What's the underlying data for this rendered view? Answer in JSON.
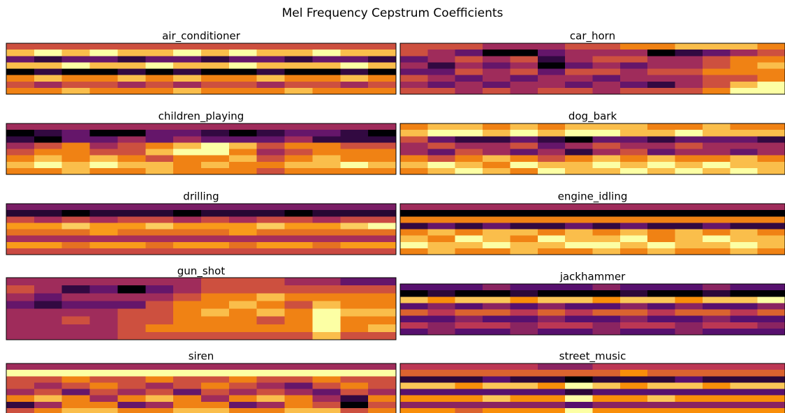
{
  "title": "Mel Frequency Cepstrum Coefficients",
  "chart_data": [
    {
      "type": "heatmap",
      "title": "air_conditioner",
      "colormap": "inferno",
      "values": [
        [
          5,
          5,
          5,
          5,
          5,
          5,
          5,
          5,
          5,
          5,
          5,
          5,
          5,
          5
        ],
        [
          7,
          8,
          7,
          8,
          7,
          7,
          8,
          7,
          8,
          7,
          7,
          8,
          7,
          7
        ],
        [
          3,
          2,
          3,
          3,
          2,
          3,
          3,
          2,
          3,
          3,
          2,
          3,
          3,
          2
        ],
        [
          7,
          7,
          8,
          7,
          7,
          8,
          7,
          7,
          8,
          7,
          7,
          7,
          8,
          7
        ],
        [
          1,
          2,
          1,
          1,
          2,
          1,
          2,
          1,
          1,
          2,
          1,
          1,
          2,
          1
        ],
        [
          6,
          7,
          6,
          6,
          7,
          6,
          7,
          6,
          6,
          7,
          6,
          6,
          7,
          6
        ],
        [
          5,
          4,
          5,
          5,
          4,
          5,
          4,
          5,
          5,
          4,
          5,
          5,
          4,
          5
        ],
        [
          6,
          6,
          7,
          6,
          6,
          6,
          7,
          6,
          6,
          6,
          7,
          6,
          6,
          6
        ]
      ]
    },
    {
      "type": "heatmap",
      "title": "car_horn",
      "colormap": "inferno",
      "values": [
        [
          5,
          5,
          5,
          4,
          4,
          4,
          5,
          5,
          6,
          6,
          7,
          7,
          7,
          6
        ],
        [
          5,
          4,
          3,
          1,
          1,
          3,
          4,
          4,
          4,
          1,
          2,
          3,
          4,
          5
        ],
        [
          3,
          4,
          5,
          4,
          5,
          2,
          4,
          5,
          5,
          4,
          4,
          5,
          6,
          6
        ],
        [
          4,
          2,
          4,
          3,
          4,
          1,
          3,
          4,
          3,
          4,
          4,
          5,
          6,
          7
        ],
        [
          3,
          3,
          5,
          4,
          5,
          3,
          5,
          5,
          4,
          5,
          5,
          6,
          6,
          6
        ],
        [
          5,
          4,
          3,
          4,
          3,
          4,
          4,
          3,
          4,
          4,
          4,
          5,
          5,
          6
        ],
        [
          4,
          3,
          4,
          3,
          4,
          4,
          3,
          4,
          3,
          2,
          4,
          5,
          7,
          8
        ],
        [
          5,
          5,
          4,
          5,
          4,
          5,
          5,
          4,
          5,
          5,
          5,
          6,
          8,
          8
        ]
      ]
    },
    {
      "type": "heatmap",
      "title": "children_playing",
      "colormap": "inferno",
      "values": [
        [
          4,
          4,
          4,
          4,
          4,
          4,
          4,
          4,
          4,
          4,
          4,
          4,
          4,
          4
        ],
        [
          1,
          2,
          3,
          1,
          1,
          3,
          3,
          2,
          1,
          2,
          3,
          3,
          2,
          1
        ],
        [
          2,
          1,
          3,
          3,
          4,
          3,
          4,
          3,
          3,
          3,
          4,
          2,
          2,
          2
        ],
        [
          4,
          5,
          6,
          4,
          5,
          6,
          7,
          8,
          7,
          5,
          6,
          6,
          5,
          5
        ],
        [
          5,
          6,
          6,
          5,
          5,
          7,
          8,
          8,
          6,
          4,
          5,
          6,
          6,
          6
        ],
        [
          6,
          7,
          6,
          7,
          6,
          5,
          6,
          6,
          7,
          5,
          6,
          7,
          6,
          6
        ],
        [
          7,
          8,
          7,
          8,
          7,
          7,
          6,
          7,
          6,
          6,
          7,
          7,
          8,
          7
        ],
        [
          6,
          6,
          7,
          6,
          6,
          7,
          6,
          6,
          6,
          5,
          6,
          6,
          6,
          6
        ]
      ]
    },
    {
      "type": "heatmap",
      "title": "dog_bark",
      "colormap": "inferno",
      "values": [
        [
          6,
          7,
          7,
          6,
          7,
          6,
          7,
          7,
          7,
          6,
          6,
          7,
          6,
          6
        ],
        [
          7,
          8,
          8,
          7,
          8,
          7,
          8,
          8,
          7,
          7,
          8,
          7,
          7,
          7
        ],
        [
          5,
          3,
          2,
          2,
          3,
          2,
          1,
          3,
          3,
          2,
          3,
          3,
          3,
          2
        ],
        [
          4,
          5,
          4,
          4,
          5,
          3,
          4,
          5,
          4,
          4,
          5,
          4,
          4,
          4
        ],
        [
          4,
          3,
          5,
          4,
          3,
          4,
          2,
          4,
          5,
          3,
          4,
          4,
          3,
          4
        ],
        [
          6,
          5,
          6,
          7,
          6,
          5,
          6,
          7,
          6,
          7,
          6,
          6,
          7,
          6
        ],
        [
          7,
          8,
          7,
          6,
          8,
          7,
          7,
          8,
          7,
          8,
          7,
          8,
          7,
          7
        ],
        [
          6,
          7,
          8,
          7,
          6,
          8,
          7,
          7,
          8,
          7,
          8,
          7,
          8,
          7
        ]
      ]
    },
    {
      "type": "heatmap",
      "title": "drilling",
      "colormap": "inferno",
      "values": [
        [
          3,
          3,
          3,
          3,
          3,
          3,
          3,
          3,
          3,
          3,
          3,
          3,
          3,
          3
        ],
        [
          1,
          1,
          0,
          1,
          1,
          1,
          0,
          1,
          1,
          1,
          0,
          1,
          1,
          1
        ],
        [
          5,
          4,
          5,
          4,
          5,
          5,
          4,
          5,
          4,
          5,
          5,
          4,
          5,
          5
        ],
        [
          7,
          7,
          8,
          7,
          7,
          8,
          7,
          7,
          7,
          8,
          7,
          7,
          8,
          9
        ],
        [
          6,
          6,
          6,
          7,
          6,
          6,
          6,
          6,
          7,
          6,
          6,
          6,
          6,
          6
        ],
        [
          4,
          4,
          4,
          4,
          4,
          4,
          4,
          4,
          4,
          4,
          4,
          4,
          4,
          4
        ],
        [
          7,
          7,
          6,
          7,
          7,
          6,
          7,
          7,
          6,
          7,
          7,
          6,
          7,
          7
        ],
        [
          5,
          5,
          5,
          5,
          5,
          5,
          5,
          5,
          5,
          5,
          5,
          5,
          5,
          5
        ]
      ]
    },
    {
      "type": "heatmap",
      "title": "engine_idling",
      "colormap": "inferno",
      "values": [
        [
          4,
          4,
          4,
          4,
          4,
          4,
          4,
          4,
          4,
          4,
          4,
          4,
          4,
          4
        ],
        [
          1,
          1,
          1,
          1,
          1,
          1,
          1,
          1,
          1,
          1,
          1,
          1,
          1,
          1
        ],
        [
          6,
          6,
          6,
          6,
          6,
          6,
          6,
          6,
          6,
          6,
          6,
          6,
          6,
          6
        ],
        [
          2,
          3,
          2,
          3,
          2,
          2,
          3,
          2,
          3,
          2,
          2,
          3,
          2,
          2
        ],
        [
          6,
          7,
          6,
          7,
          7,
          6,
          7,
          6,
          7,
          6,
          7,
          6,
          7,
          6
        ],
        [
          7,
          6,
          8,
          7,
          6,
          8,
          7,
          7,
          8,
          6,
          7,
          8,
          7,
          7
        ],
        [
          8,
          7,
          7,
          8,
          7,
          7,
          8,
          8,
          7,
          8,
          7,
          7,
          8,
          7
        ],
        [
          6,
          7,
          6,
          6,
          7,
          6,
          6,
          7,
          6,
          7,
          6,
          6,
          7,
          6
        ]
      ]
    },
    {
      "type": "heatmap",
      "title": "gun_shot",
      "colormap": "inferno",
      "values": [
        [
          4,
          4,
          4,
          4,
          4,
          4,
          4,
          5,
          5,
          5,
          4,
          4,
          3,
          3
        ],
        [
          5,
          4,
          2,
          3,
          1,
          3,
          4,
          5,
          5,
          5,
          5,
          5,
          5,
          5
        ],
        [
          4,
          3,
          4,
          4,
          4,
          4,
          5,
          6,
          6,
          7,
          6,
          6,
          6,
          6
        ],
        [
          3,
          2,
          3,
          3,
          3,
          5,
          6,
          6,
          7,
          6,
          5,
          7,
          6,
          6
        ],
        [
          4,
          4,
          4,
          4,
          5,
          5,
          6,
          7,
          6,
          7,
          6,
          8,
          7,
          7
        ],
        [
          4,
          4,
          5,
          4,
          5,
          5,
          6,
          6,
          6,
          5,
          6,
          8,
          6,
          6
        ],
        [
          4,
          4,
          4,
          4,
          5,
          6,
          6,
          6,
          6,
          6,
          6,
          8,
          6,
          7
        ],
        [
          4,
          4,
          4,
          4,
          5,
          5,
          5,
          5,
          5,
          5,
          5,
          7,
          5,
          5
        ]
      ]
    },
    {
      "type": "heatmap",
      "title": "jackhammer",
      "colormap": "inferno",
      "values": [
        [
          3,
          3,
          3,
          4,
          3,
          3,
          3,
          4,
          3,
          3,
          3,
          4,
          3,
          3
        ],
        [
          1,
          2,
          1,
          1,
          2,
          1,
          1,
          1,
          2,
          1,
          1,
          2,
          1,
          1
        ],
        [
          8,
          7,
          8,
          8,
          7,
          8,
          8,
          7,
          8,
          8,
          7,
          8,
          8,
          9
        ],
        [
          3,
          4,
          3,
          4,
          3,
          4,
          3,
          3,
          4,
          3,
          4,
          3,
          3,
          4
        ],
        [
          6,
          5,
          6,
          6,
          5,
          6,
          5,
          6,
          6,
          5,
          6,
          6,
          5,
          6
        ],
        [
          3,
          3,
          4,
          3,
          3,
          4,
          3,
          3,
          4,
          3,
          3,
          4,
          3,
          3
        ],
        [
          5,
          4,
          5,
          5,
          4,
          5,
          5,
          4,
          5,
          5,
          4,
          5,
          5,
          4
        ],
        [
          3,
          4,
          3,
          3,
          4,
          3,
          3,
          4,
          3,
          3,
          4,
          3,
          3,
          3
        ]
      ]
    },
    {
      "type": "heatmap",
      "title": "siren",
      "colormap": "inferno",
      "values": [
        [
          4,
          4,
          4,
          4,
          4,
          4,
          4,
          4,
          4,
          4,
          4,
          4,
          4,
          4
        ],
        [
          8,
          8,
          8,
          8,
          8,
          8,
          8,
          8,
          8,
          8,
          8,
          8,
          8,
          8
        ],
        [
          5,
          5,
          6,
          5,
          5,
          6,
          5,
          5,
          6,
          5,
          5,
          6,
          5,
          5
        ],
        [
          5,
          4,
          5,
          6,
          5,
          4,
          5,
          6,
          5,
          4,
          3,
          5,
          6,
          5
        ],
        [
          4,
          5,
          3,
          5,
          4,
          5,
          3,
          5,
          4,
          5,
          4,
          3,
          5,
          4
        ],
        [
          6,
          7,
          6,
          4,
          6,
          7,
          6,
          4,
          6,
          7,
          6,
          4,
          2,
          6
        ],
        [
          2,
          4,
          6,
          6,
          3,
          4,
          6,
          6,
          3,
          4,
          6,
          5,
          1,
          5
        ],
        [
          5,
          6,
          7,
          7,
          6,
          6,
          7,
          7,
          6,
          6,
          7,
          7,
          5,
          6
        ]
      ]
    },
    {
      "type": "heatmap",
      "title": "street_music",
      "colormap": "inferno",
      "values": [
        [
          4,
          4,
          4,
          4,
          4,
          3,
          3,
          4,
          4,
          4,
          4,
          4,
          4,
          4
        ],
        [
          5,
          5,
          5,
          5,
          5,
          5,
          5,
          5,
          6,
          5,
          5,
          5,
          5,
          5
        ],
        [
          1,
          1,
          1,
          2,
          1,
          1,
          0,
          1,
          1,
          1,
          2,
          1,
          1,
          1
        ],
        [
          7,
          7,
          6,
          7,
          7,
          6,
          8,
          7,
          6,
          7,
          7,
          6,
          7,
          7
        ],
        [
          2,
          2,
          2,
          2,
          2,
          2,
          1,
          2,
          2,
          2,
          2,
          2,
          2,
          2
        ],
        [
          6,
          6,
          6,
          7,
          6,
          6,
          8,
          6,
          6,
          7,
          6,
          6,
          6,
          6
        ],
        [
          3,
          3,
          3,
          3,
          3,
          3,
          2,
          3,
          3,
          3,
          3,
          3,
          3,
          3
        ],
        [
          6,
          6,
          5,
          6,
          6,
          6,
          8,
          6,
          6,
          6,
          6,
          6,
          6,
          6
        ]
      ]
    }
  ]
}
